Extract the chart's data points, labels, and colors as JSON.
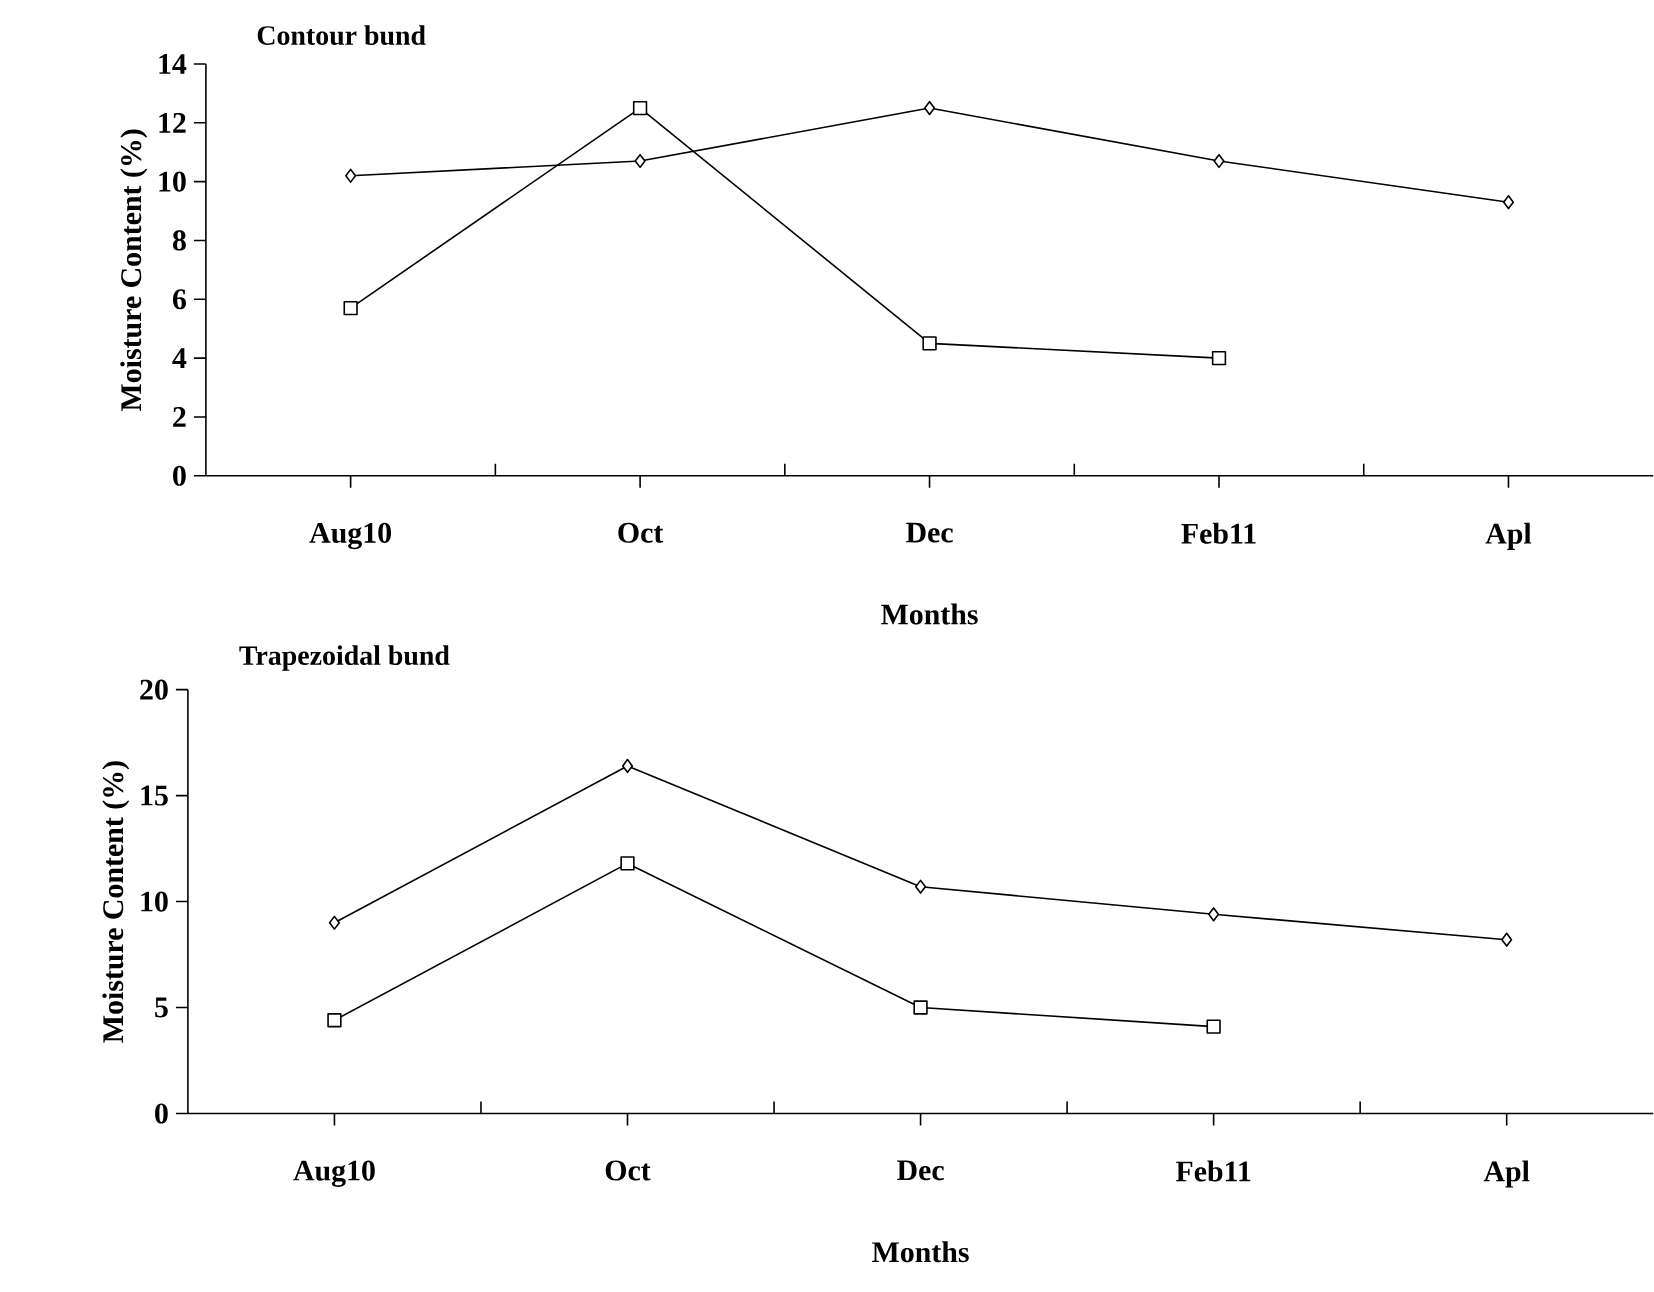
{
  "chart_data": [
    {
      "type": "line",
      "title": "Contour bund",
      "xlabel": "Months",
      "ylabel": "Moisture Content (%)",
      "categories": [
        "Aug10",
        "Oct",
        "Dec",
        "Feb11",
        "Apl"
      ],
      "ylim": [
        0,
        14
      ],
      "yticks": [
        0,
        2,
        4,
        6,
        8,
        10,
        12,
        14
      ],
      "series": [
        {
          "color": "#000000",
          "marker": "diamond",
          "values": [
            10.2,
            10.7,
            12.5,
            10.7,
            9.3
          ]
        },
        {
          "color": "#000000",
          "marker": "square",
          "values": [
            5.7,
            12.5,
            4.5,
            4.0,
            null
          ]
        }
      ]
    },
    {
      "type": "line",
      "title": "Trapezoidal bund",
      "xlabel": "Months",
      "ylabel": "Moisture Content (%)",
      "categories": [
        "Aug10",
        "Oct",
        "Dec",
        "Feb11",
        "Apl"
      ],
      "ylim": [
        0,
        20
      ],
      "yticks": [
        0,
        5,
        10,
        15,
        20
      ],
      "series": [
        {
          "color": "#000000",
          "marker": "diamond",
          "values": [
            9.0,
            16.4,
            10.7,
            9.4,
            8.2
          ]
        },
        {
          "color": "#000000",
          "marker": "square",
          "values": [
            4.4,
            11.8,
            5.0,
            4.1,
            null
          ]
        }
      ]
    }
  ]
}
